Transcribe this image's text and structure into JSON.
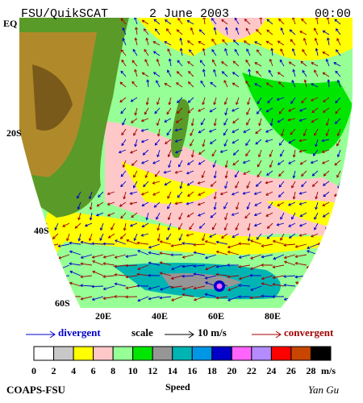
{
  "header": {
    "source": "FSU/QuikSCAT",
    "date": "2 June 2003",
    "time": "00:00"
  },
  "lat_labels": [
    "EQ",
    "20S",
    "40S",
    "60S"
  ],
  "lon_labels": [
    "20E",
    "40E",
    "60E",
    "80E"
  ],
  "legend": {
    "divergent": "divergent",
    "scale": "scale",
    "scale_value": "10 m/s",
    "convergent": "convergent"
  },
  "colorbar": {
    "label": "Speed",
    "unit": "m/s",
    "ticks": [
      0,
      2,
      4,
      6,
      8,
      10,
      12,
      14,
      16,
      18,
      20,
      22,
      24,
      26,
      28
    ],
    "colors": [
      "#ffffff",
      "#c8c8c8",
      "#ffff00",
      "#ffc8c8",
      "#96ff96",
      "#00e600",
      "#969696",
      "#00b4b4",
      "#0096e6",
      "#0000c8",
      "#ff64ff",
      "#b48cff",
      "#ff0000",
      "#c84600",
      "#000000"
    ]
  },
  "footer": {
    "left": "COAPS-FSU",
    "right": "Yan Gu"
  }
}
